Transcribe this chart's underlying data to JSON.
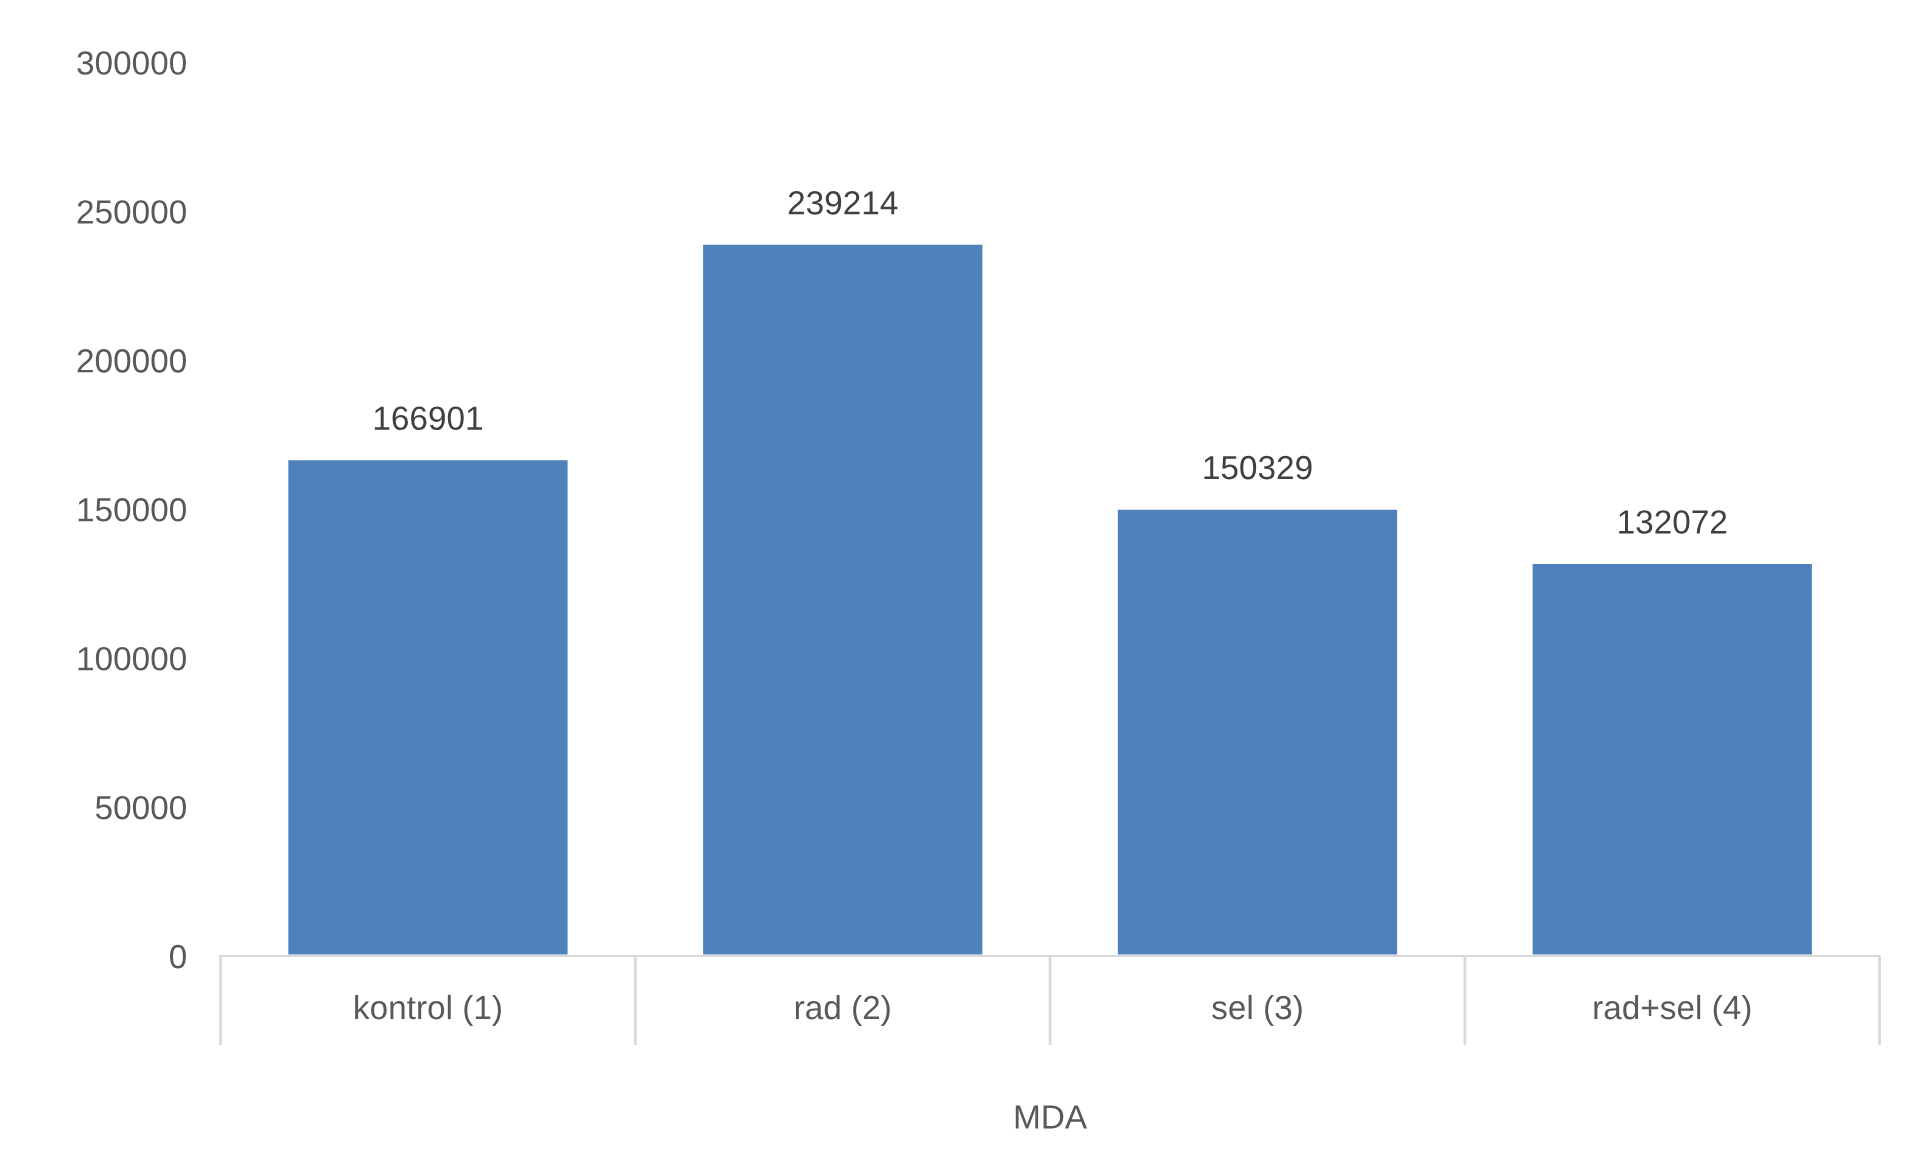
{
  "chart_data": {
    "type": "bar",
    "xlabel": "MDA",
    "categories": [
      "kontrol (1)",
      "rad (2)",
      "sel (3)",
      "rad+sel (4)"
    ],
    "values": [
      166901,
      239214,
      150329,
      132072
    ],
    "color": "#4f81bd",
    "ylim": [
      0,
      300000
    ],
    "yticks": [
      0,
      50000,
      100000,
      150000,
      200000,
      250000,
      300000
    ],
    "data_labels": true,
    "grid": false,
    "legend": false
  }
}
